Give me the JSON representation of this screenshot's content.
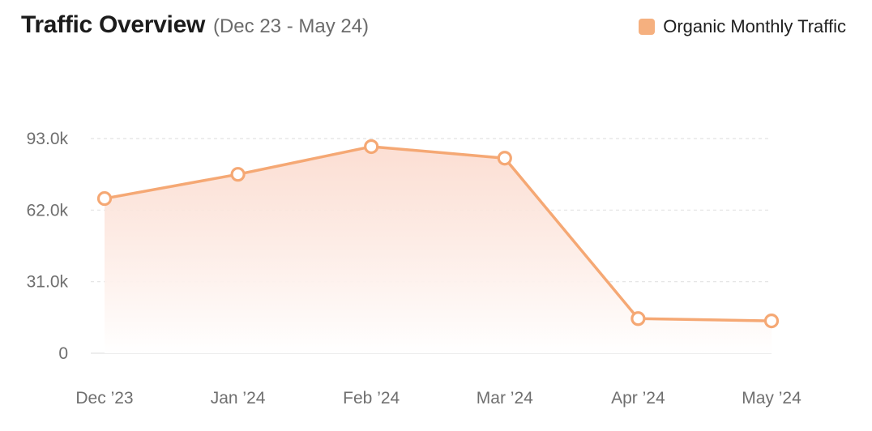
{
  "header": {
    "title": "Traffic Overview",
    "subtitle": "(Dec 23 - May 24)"
  },
  "legend": {
    "label": "Organic Monthly Traffic",
    "color": "#f5b07f"
  },
  "colors": {
    "line": "#f5a874",
    "fill_top": "#fbd9cc",
    "grid": "#e2e2e2",
    "axis_text": "#6f6f6f"
  },
  "chart_data": {
    "type": "area",
    "x": [
      "Dec ’23",
      "Jan ’24",
      "Feb ’24",
      "Mar ’24",
      "Apr ’24",
      "May ’24"
    ],
    "series": [
      {
        "name": "Organic Monthly Traffic",
        "values": [
          67000,
          77500,
          89500,
          84500,
          15000,
          14000
        ]
      }
    ],
    "y_ticks": [
      0,
      31000,
      62000,
      93000
    ],
    "y_tick_labels": [
      "0",
      "31.0k",
      "62.0k",
      "93.0k"
    ],
    "ylim": [
      0,
      93000
    ],
    "grid": true,
    "legend_position": "top-right"
  }
}
